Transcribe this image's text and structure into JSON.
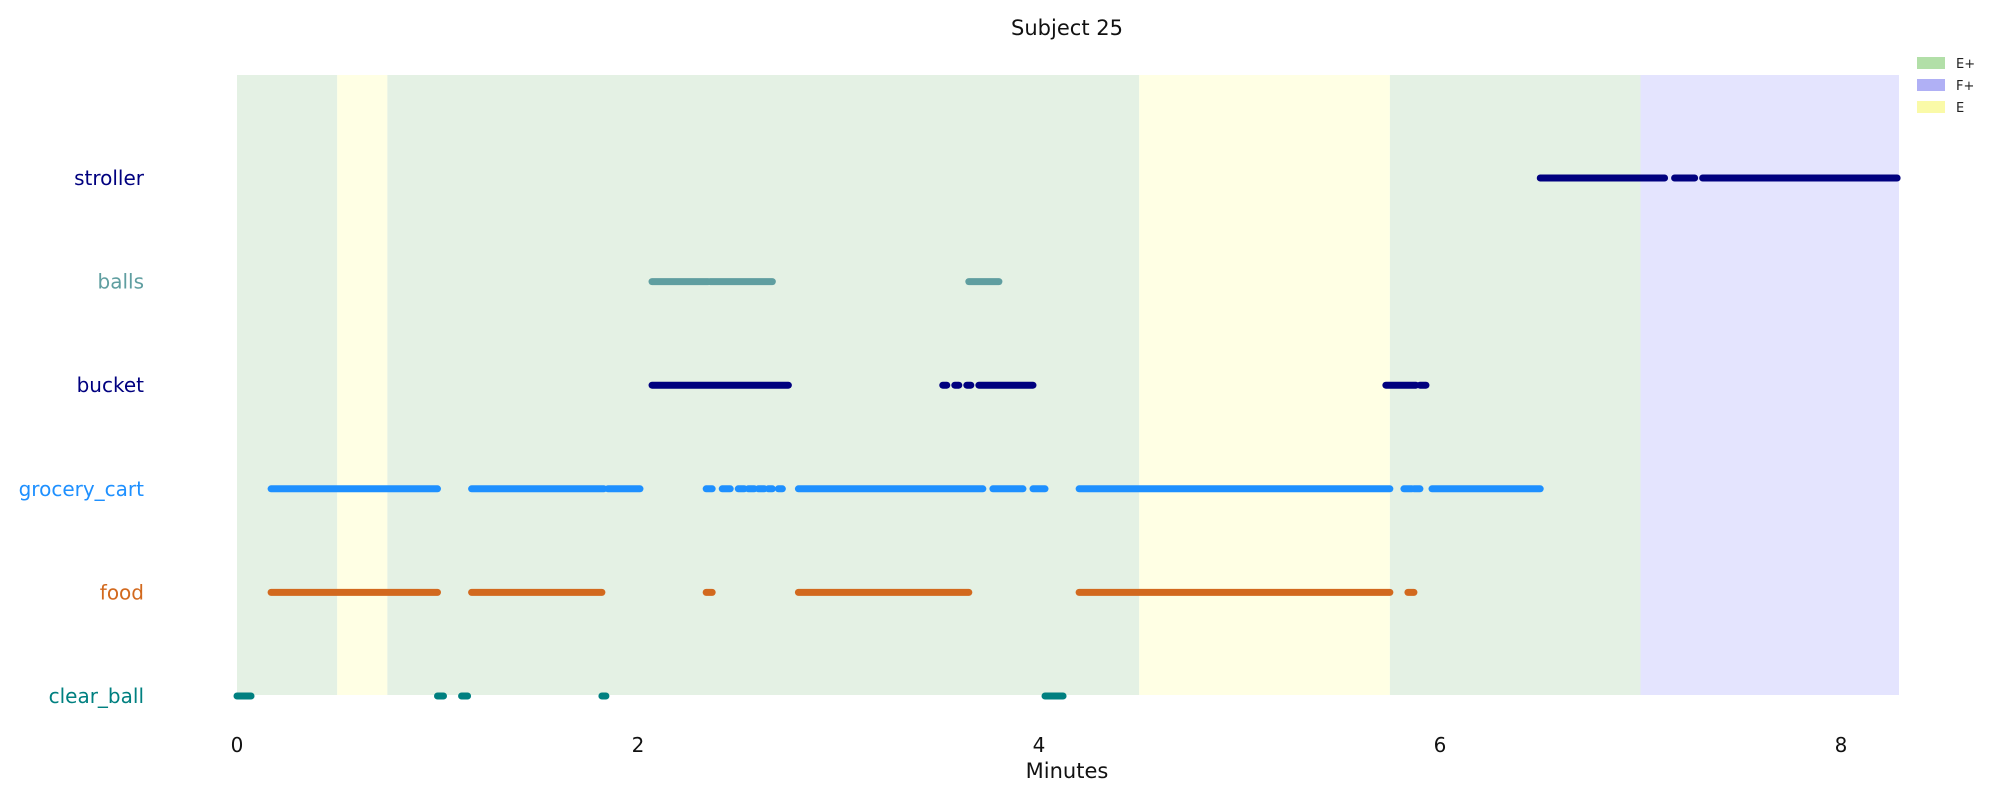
{
  "chart_data": {
    "type": "timeline",
    "title": "Subject 25",
    "xlabel": "Minutes",
    "ylabel": "",
    "xlim": [
      0,
      8.3
    ],
    "xticks": [
      0,
      2,
      4,
      6,
      8
    ],
    "grid": false,
    "legend_position": "top-right",
    "legend": [
      {
        "label": "E+",
        "color": "#b2dfa8"
      },
      {
        "label": "F+",
        "color": "#b0b0f5"
      },
      {
        "label": "E",
        "color": "#fafaa8"
      }
    ],
    "background_spans": [
      {
        "label": "E+",
        "start": 0.0,
        "end": 0.5,
        "color": "#e4f1e4"
      },
      {
        "label": "E",
        "start": 0.5,
        "end": 0.75,
        "color": "#ffffe4"
      },
      {
        "label": "E+",
        "start": 0.75,
        "end": 4.5,
        "color": "#e4f1e4"
      },
      {
        "label": "E",
        "start": 4.5,
        "end": 5.75,
        "color": "#ffffe4"
      },
      {
        "label": "E+",
        "start": 5.75,
        "end": 7.0,
        "color": "#e4f1e4"
      },
      {
        "label": "F+",
        "start": 7.0,
        "end": 8.3,
        "color": "#e4e4fe"
      }
    ],
    "categories": [
      "stroller",
      "balls",
      "bucket",
      "grocery_cart",
      "food",
      "clear_ball"
    ],
    "series": [
      {
        "name": "stroller",
        "color": "#00007f",
        "segments": [
          [
            6.5,
            7.12
          ],
          [
            7.17,
            7.27
          ],
          [
            7.31,
            8.28
          ]
        ]
      },
      {
        "name": "balls",
        "color": "#5f9ea0",
        "segments": [
          [
            2.07,
            2.35
          ],
          [
            2.36,
            2.67
          ],
          [
            3.65,
            3.8
          ]
        ]
      },
      {
        "name": "bucket",
        "color": "#00007f",
        "segments": [
          [
            2.07,
            2.75
          ],
          [
            3.52,
            3.54
          ],
          [
            3.58,
            3.6
          ],
          [
            3.64,
            3.66
          ],
          [
            3.7,
            3.97
          ],
          [
            5.73,
            5.88
          ],
          [
            5.9,
            5.93
          ]
        ]
      },
      {
        "name": "grocery_cart",
        "color": "#1e90ff",
        "segments": [
          [
            0.17,
            1.0
          ],
          [
            1.17,
            1.83
          ],
          [
            1.85,
            2.01
          ],
          [
            2.34,
            2.37
          ],
          [
            2.42,
            2.46
          ],
          [
            2.5,
            2.53
          ],
          [
            2.55,
            2.58
          ],
          [
            2.6,
            2.63
          ],
          [
            2.65,
            2.67
          ],
          [
            2.7,
            2.72
          ],
          [
            2.8,
            3.72
          ],
          [
            3.77,
            3.92
          ],
          [
            3.97,
            4.03
          ],
          [
            4.2,
            5.75
          ],
          [
            5.82,
            5.86
          ],
          [
            5.87,
            5.9
          ],
          [
            5.96,
            6.5
          ]
        ]
      },
      {
        "name": "food",
        "color": "#d2691e",
        "segments": [
          [
            0.17,
            1.0
          ],
          [
            1.17,
            1.82
          ],
          [
            2.34,
            2.37
          ],
          [
            2.8,
            3.65
          ],
          [
            4.2,
            5.75
          ],
          [
            5.84,
            5.87
          ]
        ]
      },
      {
        "name": "clear_ball",
        "color": "#008080",
        "segments": [
          [
            0.0,
            0.07
          ],
          [
            1.0,
            1.03
          ],
          [
            1.12,
            1.15
          ],
          [
            1.82,
            1.84
          ],
          [
            4.03,
            4.12
          ]
        ]
      }
    ]
  }
}
